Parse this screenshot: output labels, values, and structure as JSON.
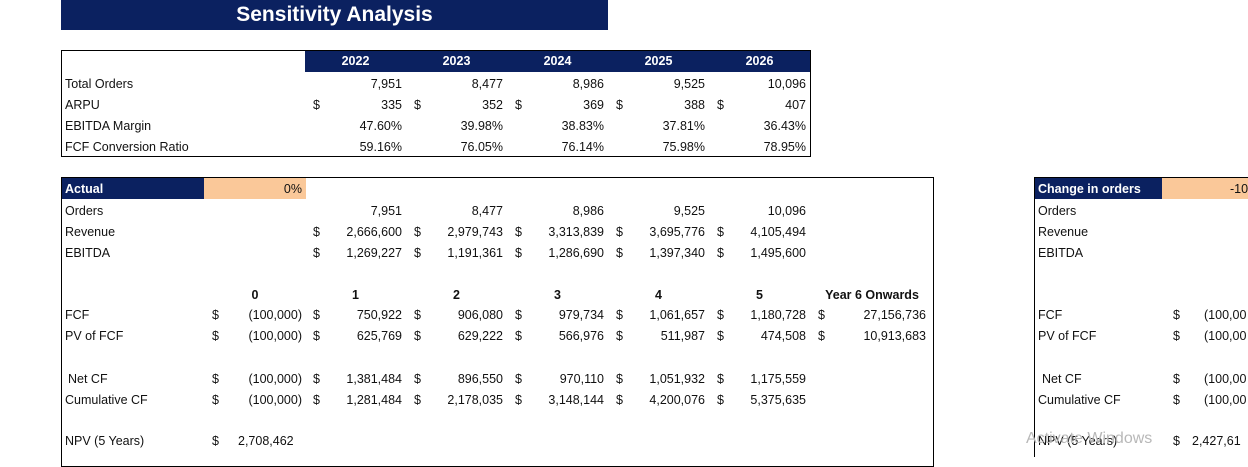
{
  "title": "Sensitivity Analysis",
  "top_table": {
    "years": [
      "2022",
      "2023",
      "2024",
      "2025",
      "2026"
    ],
    "rows": [
      {
        "label": "Total Orders",
        "currency": [
          "",
          "",
          "",
          "",
          ""
        ],
        "values": [
          "7,951",
          "8,477",
          "8,986",
          "9,525",
          "10,096"
        ]
      },
      {
        "label": "ARPU",
        "currency": [
          "$",
          "$",
          "$",
          "$",
          "$"
        ],
        "values": [
          "335",
          "352",
          "369",
          "388",
          "407"
        ]
      },
      {
        "label": "EBITDA Margin",
        "currency": [
          "",
          "",
          "",
          "",
          ""
        ],
        "values": [
          "47.60%",
          "39.98%",
          "38.83%",
          "37.81%",
          "36.43%"
        ]
      },
      {
        "label": "FCF Conversion Ratio",
        "currency": [
          "",
          "",
          "",
          "",
          ""
        ],
        "values": [
          "59.16%",
          "76.05%",
          "76.14%",
          "75.98%",
          "78.95%"
        ]
      }
    ]
  },
  "actual": {
    "label": "Actual",
    "pct": "0%",
    "orders": {
      "label": "Orders",
      "values": [
        "7,951",
        "8,477",
        "8,986",
        "9,525",
        "10,096"
      ]
    },
    "revenue": {
      "label": "Revenue",
      "currency": "$",
      "values": [
        "2,666,600",
        "2,979,743",
        "3,313,839",
        "3,695,776",
        "4,105,494"
      ]
    },
    "ebitda": {
      "label": "EBITDA",
      "currency": "$",
      "values": [
        "1,269,227",
        "1,191,361",
        "1,286,690",
        "1,397,340",
        "1,495,600"
      ]
    },
    "periods": [
      "0",
      "1",
      "2",
      "3",
      "4",
      "5",
      "Year 6 Onwards"
    ],
    "fcf": {
      "label": "FCF",
      "values": [
        "(100,000)",
        "750,922",
        "906,080",
        "979,734",
        "1,061,657",
        "1,180,728",
        "27,156,736"
      ]
    },
    "pv_fcf": {
      "label": "PV of FCF",
      "values": [
        "(100,000)",
        "625,769",
        "629,222",
        "566,976",
        "511,987",
        "474,508",
        "10,913,683"
      ]
    },
    "net_cf": {
      "label": "Net CF",
      "values": [
        "(100,000)",
        "1,381,484",
        "896,550",
        "970,110",
        "1,051,932",
        "1,175,559"
      ]
    },
    "cum_cf": {
      "label": "Cumulative CF",
      "values": [
        "(100,000)",
        "1,281,484",
        "2,178,035",
        "3,148,144",
        "4,200,076",
        "5,375,635"
      ]
    },
    "npv": {
      "label": "NPV (5 Years)",
      "currency": "$",
      "value": "2,708,462"
    }
  },
  "change": {
    "label": "Change in orders",
    "pct": "-10",
    "orders_label": "Orders",
    "revenue_label": "Revenue",
    "ebitda_label": "EBITDA",
    "fcf": {
      "label": "FCF",
      "value": "(100,00"
    },
    "pv_fcf": {
      "label": "PV of FCF",
      "value": "(100,00"
    },
    "net_cf": {
      "label": "Net CF",
      "value": "(100,00"
    },
    "cum_cf": {
      "label": "Cumulative CF",
      "value": "(100,00"
    },
    "npv": {
      "label": "NPV (5 Years)",
      "value": "2,427,61"
    }
  },
  "currency_symbol": "$",
  "watermark": "Activate Windows",
  "colors": {
    "header_navy": "#0b2160",
    "input_orange": "#fac899"
  }
}
